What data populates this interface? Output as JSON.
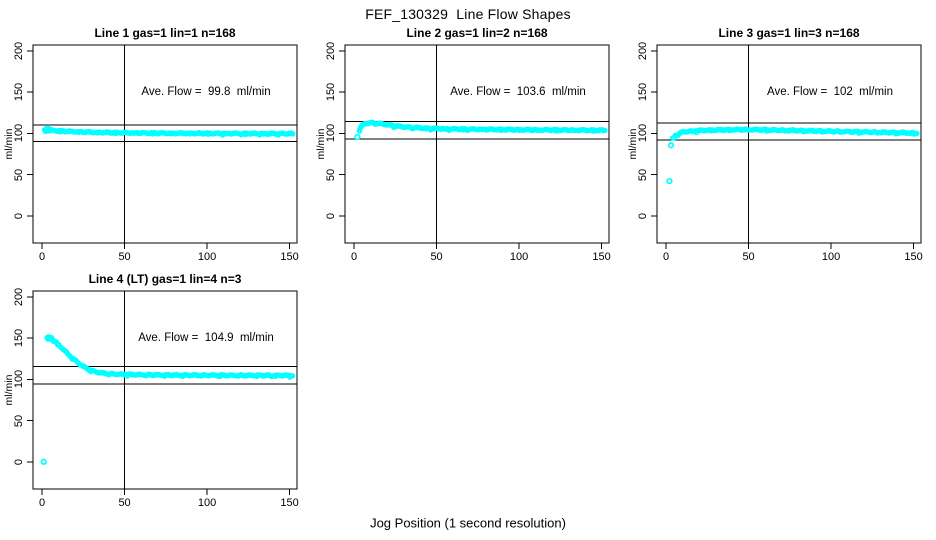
{
  "figure": {
    "title": "FEF_130329  Line Flow Shapes",
    "xlabel": "Jog Position (1 second resolution)",
    "background_color": "#ffffff",
    "point_color": "#00ffff",
    "line_color": "#000000"
  },
  "chart_data": [
    {
      "type": "scatter",
      "title": "Line 1 gas=1 lin=1 n=168",
      "gas": 1,
      "lin": 1,
      "n": 168,
      "annotation": "Ave. Flow =  99.8  ml/min",
      "ave_flow_ml_min": 99.8,
      "ylabel": "ml/min",
      "x_ticks": [
        0,
        50,
        100,
        150
      ],
      "y_ticks": [
        0,
        50,
        100,
        150,
        200
      ],
      "xlim": [
        -5.5,
        154.5
      ],
      "ylim": [
        -33,
        207
      ],
      "vline_x": 50,
      "hlines": [
        89.8,
        109.8
      ],
      "band_anchors": [
        [
          1.5,
          103.5
        ],
        [
          2,
          104.5
        ],
        [
          3,
          105
        ],
        [
          4,
          104.2
        ],
        [
          6,
          103.6
        ],
        [
          9,
          103.1
        ],
        [
          13,
          102.6
        ],
        [
          18,
          102.1
        ],
        [
          25,
          101.6
        ],
        [
          33,
          101.2
        ],
        [
          43,
          100.8
        ],
        [
          55,
          100.5
        ],
        [
          70,
          100.2
        ],
        [
          85,
          100.0
        ],
        [
          100,
          99.9
        ],
        [
          115,
          99.8
        ],
        [
          130,
          99.7
        ],
        [
          152,
          99.6
        ]
      ],
      "extra_cluster_points": [
        [
          2,
          102.3
        ],
        [
          2.6,
          105.8
        ],
        [
          3.4,
          102.8
        ],
        [
          4.2,
          105.6
        ],
        [
          5,
          102.9
        ]
      ],
      "outlier_points": []
    },
    {
      "type": "scatter",
      "title": "Line 2 gas=1 lin=2 n=168",
      "gas": 1,
      "lin": 2,
      "n": 168,
      "annotation": "Ave. Flow =  103.6  ml/min",
      "ave_flow_ml_min": 103.6,
      "ylabel": "ml/min",
      "x_ticks": [
        0,
        50,
        100,
        150
      ],
      "y_ticks": [
        0,
        50,
        100,
        150,
        200
      ],
      "xlim": [
        -5.5,
        154.5
      ],
      "ylim": [
        -33,
        207
      ],
      "vline_x": 50,
      "hlines": [
        93.2,
        114.0
      ],
      "band_anchors": [
        [
          3.2,
          103
        ],
        [
          4,
          107
        ],
        [
          5,
          109.8
        ],
        [
          6.5,
          111.6
        ],
        [
          8,
          112.4
        ],
        [
          10,
          112.7
        ],
        [
          13,
          112.3
        ],
        [
          17,
          111.3
        ],
        [
          22,
          109.8
        ],
        [
          28,
          108.2
        ],
        [
          35,
          107
        ],
        [
          43,
          106.2
        ],
        [
          52,
          105.6
        ],
        [
          65,
          105.1
        ],
        [
          80,
          104.7
        ],
        [
          100,
          104.3
        ],
        [
          120,
          104
        ],
        [
          152,
          103.6
        ]
      ],
      "extra_cluster_points": [
        [
          3.6,
          105
        ],
        [
          4.4,
          108.4
        ]
      ],
      "outlier_points": [
        [
          2,
          95.5
        ]
      ]
    },
    {
      "type": "scatter",
      "title": "Line 3 gas=1 lin=3 n=168",
      "gas": 1,
      "lin": 3,
      "n": 168,
      "annotation": "Ave. Flow =  102  ml/min",
      "ave_flow_ml_min": 102,
      "ylabel": "ml/min",
      "x_ticks": [
        0,
        50,
        100,
        150
      ],
      "y_ticks": [
        0,
        50,
        100,
        150,
        200
      ],
      "xlim": [
        -5.5,
        154.5
      ],
      "ylim": [
        -33,
        207
      ],
      "vline_x": 50,
      "hlines": [
        91.8,
        112.2
      ],
      "band_anchors": [
        [
          4,
          93.5
        ],
        [
          5,
          96
        ],
        [
          6,
          97.8
        ],
        [
          8,
          100
        ],
        [
          10,
          101.4
        ],
        [
          13,
          102.3
        ],
        [
          17,
          103
        ],
        [
          22,
          103.5
        ],
        [
          28,
          103.9
        ],
        [
          36,
          104.2
        ],
        [
          46,
          104.5
        ],
        [
          56,
          104.3
        ],
        [
          68,
          103.8
        ],
        [
          82,
          103.2
        ],
        [
          96,
          102.6
        ],
        [
          110,
          102
        ],
        [
          125,
          101.4
        ],
        [
          138,
          100.9
        ],
        [
          152,
          100.4
        ]
      ],
      "extra_cluster_points": [],
      "outlier_points": [
        [
          2,
          42
        ],
        [
          3,
          85.5
        ]
      ]
    },
    {
      "type": "scatter",
      "title": "Line 4 (LT) gas=1 lin=4 n=3",
      "gas": 1,
      "lin": 4,
      "n": 3,
      "annotation": "Ave. Flow =  104.9  ml/min",
      "ave_flow_ml_min": 104.9,
      "ylabel": "ml/min",
      "x_ticks": [
        0,
        50,
        100,
        150
      ],
      "y_ticks": [
        0,
        50,
        100,
        150,
        200
      ],
      "xlim": [
        -5.5,
        154.5
      ],
      "ylim": [
        -33,
        207
      ],
      "vline_x": 50,
      "hlines": [
        94.4,
        115.4
      ],
      "band_anchors": [
        [
          3,
          149.5
        ],
        [
          4,
          150.2
        ],
        [
          5,
          149.8
        ],
        [
          6,
          148.8
        ],
        [
          7,
          147.3
        ],
        [
          8,
          145.6
        ],
        [
          9,
          143.8
        ],
        [
          10,
          141.9
        ],
        [
          11,
          140
        ],
        [
          12,
          138
        ],
        [
          13,
          136
        ],
        [
          14,
          134
        ],
        [
          15,
          132
        ],
        [
          16,
          130
        ],
        [
          17,
          128.2
        ],
        [
          18,
          126.4
        ],
        [
          19,
          124.7
        ],
        [
          20,
          123
        ],
        [
          21,
          121.4
        ],
        [
          22,
          119.8
        ],
        [
          23,
          118.3
        ],
        [
          24,
          116.9
        ],
        [
          25,
          115.6
        ],
        [
          26,
          114.4
        ],
        [
          27,
          113.3
        ],
        [
          28,
          112.3
        ],
        [
          29,
          111.4
        ],
        [
          30,
          110.6
        ],
        [
          32,
          109.3
        ],
        [
          34,
          108.4
        ],
        [
          36,
          107.7
        ],
        [
          38,
          107.2
        ],
        [
          40,
          106.8
        ],
        [
          44,
          106.3
        ],
        [
          48,
          106
        ],
        [
          54,
          105.7
        ],
        [
          60,
          105.5
        ],
        [
          68,
          105.3
        ],
        [
          76,
          105.1
        ],
        [
          86,
          105
        ],
        [
          96,
          104.9
        ],
        [
          110,
          104.8
        ],
        [
          125,
          104.7
        ],
        [
          152,
          104.6
        ]
      ],
      "extra_cluster_points": [
        [
          3.2,
          150.1
        ],
        [
          3.4,
          151
        ],
        [
          4.2,
          151.2
        ],
        [
          5,
          150.9
        ],
        [
          5.8,
          150.3
        ],
        [
          3.8,
          148.6
        ],
        [
          4.6,
          148.9
        ],
        [
          6.2,
          147.6
        ]
      ],
      "outlier_points": [
        [
          1,
          0
        ]
      ]
    }
  ]
}
